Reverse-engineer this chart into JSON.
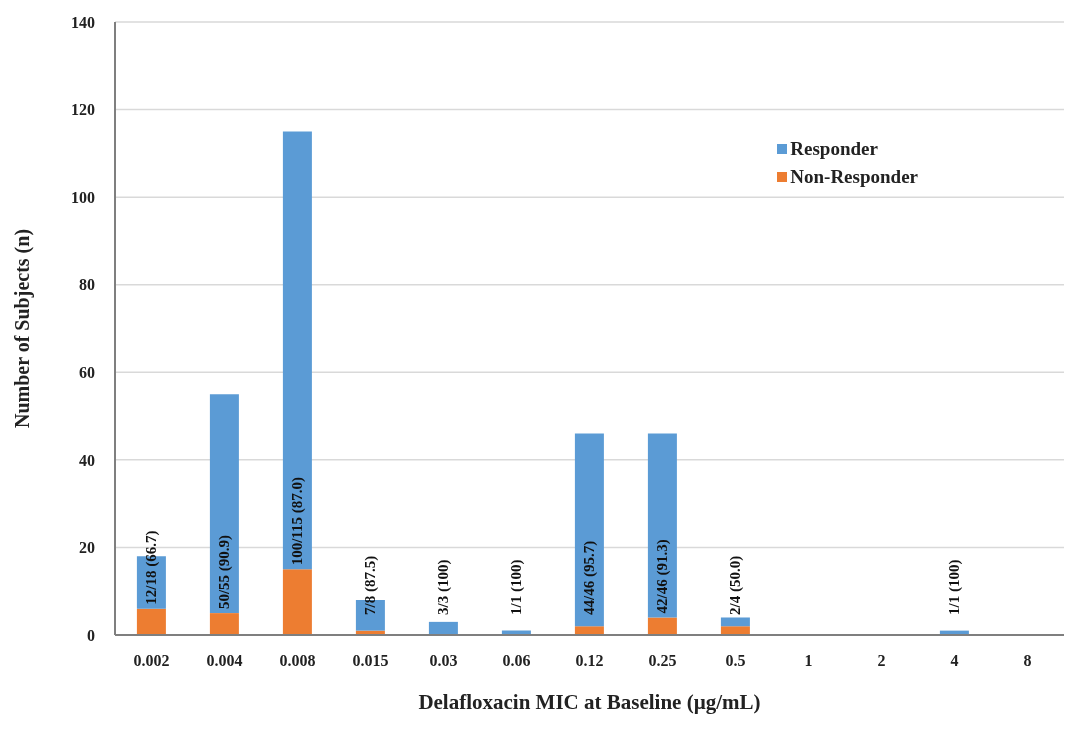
{
  "chart_data": {
    "type": "bar",
    "xlabel": "Delafloxacin MIC at Baseline (µg/mL)",
    "ylabel": "Number of Subjects (n)",
    "categories": [
      "0.002",
      "0.004",
      "0.008",
      "0.015",
      "0.03",
      "0.06",
      "0.12",
      "0.25",
      "0.5",
      "1",
      "2",
      "4",
      "8"
    ],
    "stacked": true,
    "series": [
      {
        "name": "Non-Responder",
        "color": "#ed7d31",
        "values": [
          6,
          5,
          15,
          1,
          0,
          0,
          2,
          4,
          2,
          0,
          0,
          0,
          0
        ]
      },
      {
        "name": "Responder",
        "color": "#5b9bd5",
        "values": [
          12,
          50,
          100,
          7,
          3,
          1,
          44,
          42,
          2,
          0,
          0,
          1,
          0
        ],
        "value_labels": [
          "12/18 (66.7)",
          "50/55 (90.9)",
          "100/115 (87.0)",
          "7/8 (87.5)",
          "3/3 (100)",
          "1/1 (100)",
          "44/46 (95.7)",
          "42/46 (91.3)",
          "2/4 (50.0)",
          null,
          null,
          "1/1 (100)",
          null
        ]
      }
    ],
    "ylim": [
      0,
      140
    ],
    "yticks": [
      0,
      20,
      40,
      60,
      80,
      100,
      120,
      140
    ],
    "grid": "y",
    "legend": "top right"
  }
}
